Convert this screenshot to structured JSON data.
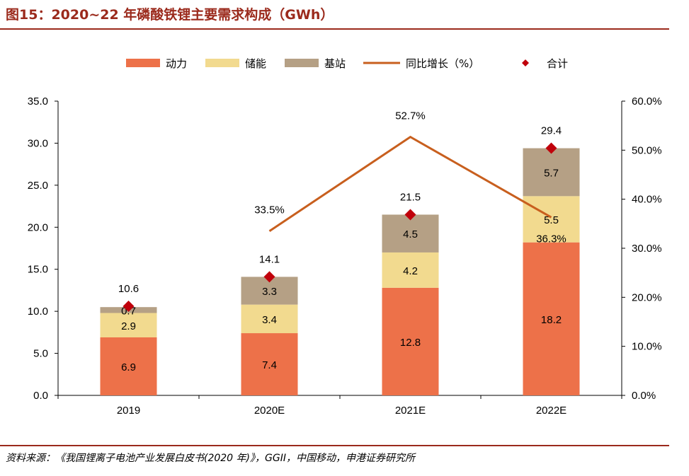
{
  "figure": {
    "title": "图15：2020~22 年磷酸铁锂主要需求构成（GWh）",
    "source": "资料来源：《我国锂离子电池产业发展白皮书(2020 年)》，GGII，中国移动，申港证券研究所"
  },
  "colors": {
    "power": "#ed7149",
    "storage": "#f2da8f",
    "base_station": "#b5a085",
    "growth_line": "#c85f1e",
    "total_marker": "#c0000b",
    "total_label": "#c0000b",
    "title": "#9b2a1c"
  },
  "chart_data": {
    "type": "bar",
    "stacked": true,
    "categories": [
      "2019",
      "2020E",
      "2021E",
      "2022E"
    ],
    "series": [
      {
        "name": "动力",
        "values": [
          6.9,
          7.4,
          12.8,
          18.2
        ],
        "labels": [
          "6.9",
          "7.4",
          "12.8",
          "18.2"
        ]
      },
      {
        "name": "储能",
        "values": [
          2.9,
          3.4,
          4.2,
          5.5
        ],
        "labels": [
          "2.9",
          "3.4",
          "4.2",
          "5.5"
        ]
      },
      {
        "name": "基站",
        "values": [
          0.7,
          3.3,
          4.5,
          5.7
        ],
        "labels": [
          "0.7",
          "3.3",
          "4.5",
          "5.7"
        ]
      }
    ],
    "line_series": {
      "name": "同比增长（%）",
      "axis": "right",
      "values": [
        null,
        33.5,
        52.7,
        36.3
      ],
      "labels": [
        "",
        "33.5%",
        "52.7%",
        "36.3%"
      ]
    },
    "total_series": {
      "name": "合计",
      "values": [
        10.6,
        14.1,
        21.5,
        29.4
      ],
      "labels": [
        "10.6",
        "14.1",
        "21.5",
        "29.4"
      ]
    },
    "ylim": [
      0,
      35
    ],
    "yticks": [
      "0.0",
      "5.0",
      "10.0",
      "15.0",
      "20.0",
      "25.0",
      "30.0",
      "35.0"
    ],
    "y2lim": [
      0,
      60
    ],
    "y2ticks": [
      "0.0%",
      "10.0%",
      "20.0%",
      "30.0%",
      "40.0%",
      "50.0%",
      "60.0%"
    ],
    "legend_position": "top",
    "grid": false
  }
}
